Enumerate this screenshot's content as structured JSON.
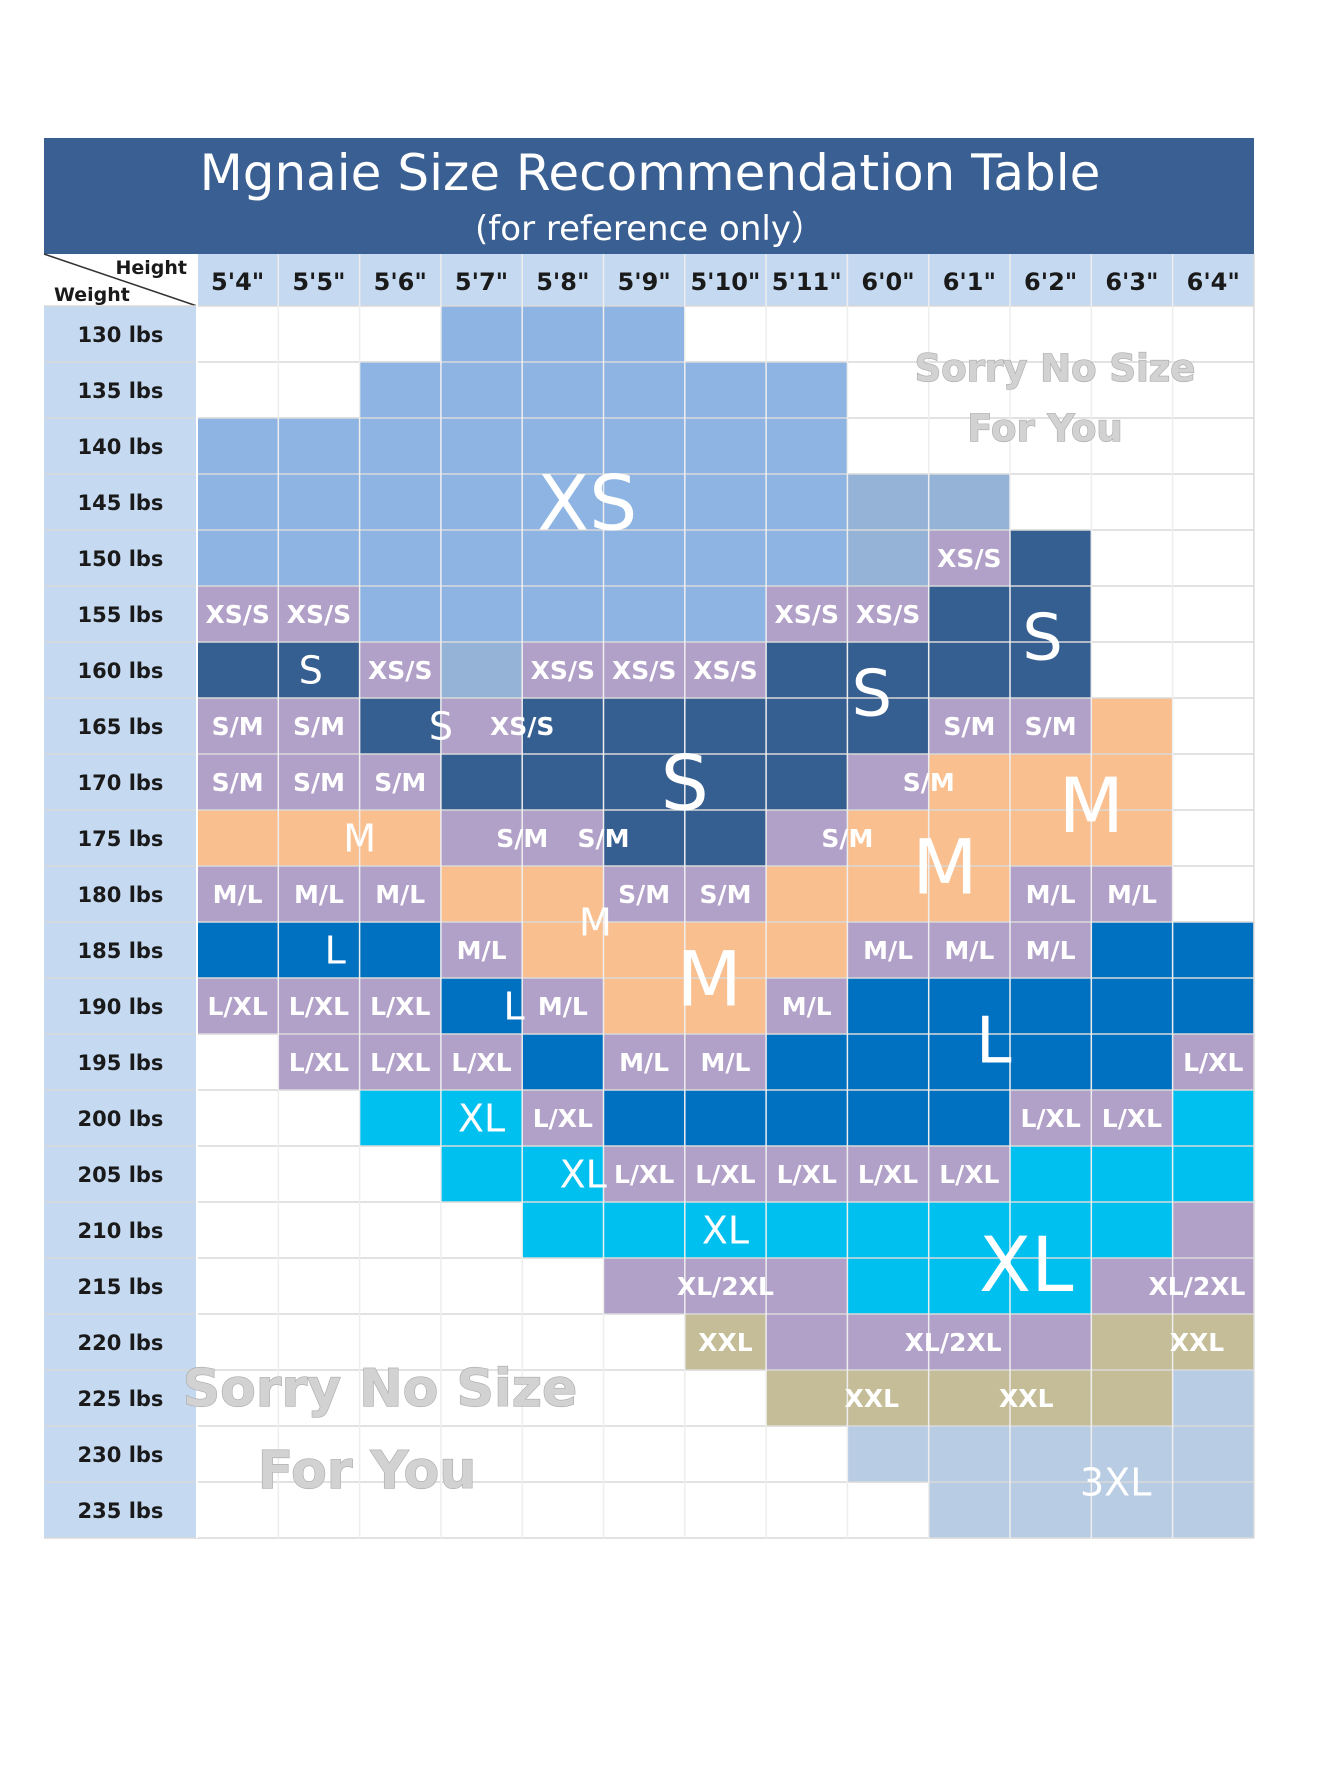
{
  "page": {
    "title": "Mgnaie Size Recommendation Table",
    "subtitle": "(for reference only）",
    "corner_height_label": "Height",
    "corner_weight_label": "Weight",
    "sorry_message_line1": "Sorry No Size",
    "sorry_message_line2": "For You"
  },
  "chart_data": {
    "type": "table",
    "heights": [
      "5'4\"",
      "5'5\"",
      "5'6\"",
      "5'7\"",
      "5'8\"",
      "5'9\"",
      "5'10\"",
      "5'11\"",
      "6'0\"",
      "6'1\"",
      "6'2\"",
      "6'3\"",
      "6'4\""
    ],
    "weights": [
      "130 lbs",
      "135 lbs",
      "140 lbs",
      "145 lbs",
      "150 lbs",
      "155 lbs",
      "160 lbs",
      "165 lbs",
      "170 lbs",
      "175 lbs",
      "180 lbs",
      "185 lbs",
      "190 lbs",
      "195 lbs",
      "200 lbs",
      "205 lbs",
      "210 lbs",
      "215 lbs",
      "220 lbs",
      "225 lbs",
      "230 lbs",
      "235 lbs"
    ],
    "colors": {
      "XS": "#8db4e2",
      "XS/S": "#b1a0c7",
      "S": "#365f91",
      "S/M": "#b1a0c7",
      "M": "#fabf8f",
      "M/L": "#b1a0c7",
      "L": "#0070c0",
      "L/XL": "#b1a0c7",
      "XL": "#00c0f0",
      "XL/2XL": "#b1a0c7",
      "XXL": "#c4bd97",
      "3XL": "#b8cce4",
      "XS-light": "#95b3d7",
      "none": "#ffffff",
      "header_bar": "#3a5f92",
      "header_row": "#c5d9f1",
      "weight_col": "#c5d9f1",
      "grid": "#d9d9d9"
    },
    "cells": [
      [
        "none",
        "none",
        "none",
        "XS",
        "XS",
        "XS",
        "none",
        "none",
        "none",
        "none",
        "none",
        "none",
        "none"
      ],
      [
        "none",
        "none",
        "XS",
        "XS",
        "XS",
        "XS",
        "XS",
        "XS",
        "none",
        "none",
        "none",
        "none",
        "none"
      ],
      [
        "XS",
        "XS",
        "XS",
        "XS",
        "XS",
        "XS",
        "XS",
        "XS",
        "none",
        "none",
        "none",
        "none",
        "none"
      ],
      [
        "XS",
        "XS",
        "XS",
        "XS",
        "XS",
        "XS",
        "XS",
        "XS",
        "XS-light",
        "XS-light",
        "none",
        "none",
        "none"
      ],
      [
        "XS",
        "XS",
        "XS",
        "XS",
        "XS",
        "XS",
        "XS",
        "XS",
        "XS-light",
        "XS/S",
        "S",
        "none",
        "none"
      ],
      [
        "XS/S",
        "XS/S",
        "XS",
        "XS",
        "XS",
        "XS",
        "XS",
        "XS/S",
        "XS/S",
        "S",
        "S",
        "none",
        "none"
      ],
      [
        "S",
        "S",
        "XS/S",
        "XS-light",
        "XS/S",
        "XS/S",
        "XS/S",
        "S",
        "S",
        "S",
        "S",
        "none",
        "none"
      ],
      [
        "S/M",
        "S/M",
        "S",
        "XS/S",
        "S",
        "S",
        "S",
        "S",
        "S",
        "S/M",
        "S/M",
        "M",
        "none"
      ],
      [
        "S/M",
        "S/M",
        "S/M",
        "S",
        "S",
        "S",
        "S",
        "S",
        "S/M",
        "M",
        "M",
        "M",
        "none"
      ],
      [
        "M",
        "M",
        "M",
        "S/M",
        "S/M",
        "S",
        "S",
        "S/M",
        "M",
        "M",
        "M",
        "M",
        "none"
      ],
      [
        "M/L",
        "M/L",
        "M/L",
        "M",
        "M",
        "S/M",
        "S/M",
        "M",
        "M",
        "M",
        "M/L",
        "M/L",
        "none"
      ],
      [
        "L",
        "L",
        "L",
        "M/L",
        "M",
        "M",
        "M",
        "M",
        "M/L",
        "M/L",
        "M/L",
        "L",
        "L"
      ],
      [
        "L/XL",
        "L/XL",
        "L/XL",
        "L",
        "M/L",
        "M",
        "M",
        "M/L",
        "L",
        "L",
        "L",
        "L",
        "L"
      ],
      [
        "none",
        "L/XL",
        "L/XL",
        "L/XL",
        "L",
        "M/L",
        "M/L",
        "L",
        "L",
        "L",
        "L",
        "L",
        "L/XL"
      ],
      [
        "none",
        "none",
        "XL",
        "XL",
        "L/XL",
        "L",
        "L",
        "L",
        "L",
        "L",
        "L/XL",
        "L/XL",
        "XL"
      ],
      [
        "none",
        "none",
        "none",
        "XL",
        "XL",
        "L/XL",
        "L/XL",
        "L/XL",
        "L/XL",
        "L/XL",
        "XL",
        "XL",
        "XL"
      ],
      [
        "none",
        "none",
        "none",
        "none",
        "XL",
        "XL",
        "XL",
        "XL",
        "XL",
        "XL",
        "XL",
        "XL",
        "XL/2XL"
      ],
      [
        "none",
        "none",
        "none",
        "none",
        "none",
        "XL/2XL",
        "XL/2XL",
        "XL/2XL",
        "XL",
        "XL",
        "XL",
        "XL/2XL",
        "XL/2XL"
      ],
      [
        "none",
        "none",
        "none",
        "none",
        "none",
        "none",
        "XXL",
        "XL/2XL",
        "XL/2XL",
        "XL/2XL",
        "XL/2XL",
        "XXL",
        "XXL"
      ],
      [
        "none",
        "none",
        "none",
        "none",
        "none",
        "none",
        "none",
        "XXL",
        "XXL",
        "XXL",
        "XXL",
        "XXL",
        "3XL"
      ],
      [
        "none",
        "none",
        "none",
        "none",
        "none",
        "none",
        "none",
        "none",
        "3XL",
        "3XL",
        "3XL",
        "3XL",
        "3XL"
      ],
      [
        "none",
        "none",
        "none",
        "none",
        "none",
        "none",
        "none",
        "none",
        "none",
        "3XL",
        "3XL",
        "3XL",
        "3XL"
      ]
    ],
    "labels": [
      {
        "text": "XS",
        "row": 3,
        "col": 4.3,
        "size": "xl"
      },
      {
        "text": "XS/S",
        "row": 4,
        "col": 9,
        "size": "s"
      },
      {
        "text": "XS/S",
        "row": 5,
        "col": 0,
        "size": "s"
      },
      {
        "text": "XS/S",
        "row": 5,
        "col": 1,
        "size": "s"
      },
      {
        "text": "XS/S",
        "row": 5,
        "col": 7,
        "size": "s"
      },
      {
        "text": "XS/S",
        "row": 5,
        "col": 8,
        "size": "s"
      },
      {
        "text": "S",
        "row": 5.4,
        "col": 9.9,
        "size": "l"
      },
      {
        "text": "S",
        "row": 6,
        "col": 0.9,
        "size": "m"
      },
      {
        "text": "XS/S",
        "row": 6,
        "col": 2,
        "size": "s"
      },
      {
        "text": "XS/S",
        "row": 6,
        "col": 4,
        "size": "s"
      },
      {
        "text": "XS/S",
        "row": 6,
        "col": 5,
        "size": "s"
      },
      {
        "text": "XS/S",
        "row": 6,
        "col": 6,
        "size": "s"
      },
      {
        "text": "S",
        "row": 6.4,
        "col": 7.8,
        "size": "l"
      },
      {
        "text": "S/M",
        "row": 7,
        "col": 0,
        "size": "s"
      },
      {
        "text": "S/M",
        "row": 7,
        "col": 1,
        "size": "s"
      },
      {
        "text": "S",
        "row": 7,
        "col": 2.5,
        "size": "m"
      },
      {
        "text": "XS/S",
        "row": 7,
        "col": 3.5,
        "size": "s"
      },
      {
        "text": "S/M",
        "row": 7,
        "col": 9,
        "size": "s"
      },
      {
        "text": "S/M",
        "row": 7,
        "col": 10,
        "size": "s"
      },
      {
        "text": "S/M",
        "row": 8,
        "col": 0,
        "size": "s"
      },
      {
        "text": "S/M",
        "row": 8,
        "col": 1,
        "size": "s"
      },
      {
        "text": "S/M",
        "row": 8,
        "col": 2,
        "size": "s"
      },
      {
        "text": "S",
        "row": 8,
        "col": 5.5,
        "size": "xl"
      },
      {
        "text": "S/M",
        "row": 8,
        "col": 8.5,
        "size": "s"
      },
      {
        "text": "M",
        "row": 8.4,
        "col": 10.5,
        "size": "xl"
      },
      {
        "text": "M",
        "row": 9,
        "col": 1.5,
        "size": "m"
      },
      {
        "text": "S/M",
        "row": 9,
        "col": 3.5,
        "size": "s"
      },
      {
        "text": "S/M",
        "row": 9,
        "col": 4.5,
        "size": "s"
      },
      {
        "text": "S/M",
        "row": 9,
        "col": 7.5,
        "size": "s"
      },
      {
        "text": "M",
        "row": 9.5,
        "col": 8.7,
        "size": "xl"
      },
      {
        "text": "M/L",
        "row": 10,
        "col": 0,
        "size": "s"
      },
      {
        "text": "M/L",
        "row": 10,
        "col": 1,
        "size": "s"
      },
      {
        "text": "M/L",
        "row": 10,
        "col": 2,
        "size": "s"
      },
      {
        "text": "S/M",
        "row": 10,
        "col": 5,
        "size": "s"
      },
      {
        "text": "S/M",
        "row": 10,
        "col": 6,
        "size": "s"
      },
      {
        "text": "M/L",
        "row": 10,
        "col": 10,
        "size": "s"
      },
      {
        "text": "M/L",
        "row": 10,
        "col": 11,
        "size": "s"
      },
      {
        "text": "M",
        "row": 10.5,
        "col": 4.4,
        "size": "m"
      },
      {
        "text": "L",
        "row": 11,
        "col": 1.2,
        "size": "m"
      },
      {
        "text": "M/L",
        "row": 11,
        "col": 3,
        "size": "s"
      },
      {
        "text": "M/L",
        "row": 11,
        "col": 8,
        "size": "s"
      },
      {
        "text": "M/L",
        "row": 11,
        "col": 9,
        "size": "s"
      },
      {
        "text": "M/L",
        "row": 11,
        "col": 10,
        "size": "s"
      },
      {
        "text": "M",
        "row": 11.5,
        "col": 5.8,
        "size": "xl"
      },
      {
        "text": "L/XL",
        "row": 12,
        "col": 0,
        "size": "s"
      },
      {
        "text": "L/XL",
        "row": 12,
        "col": 1,
        "size": "s"
      },
      {
        "text": "L/XL",
        "row": 12,
        "col": 2,
        "size": "s"
      },
      {
        "text": "L",
        "row": 12,
        "col": 3.4,
        "size": "m"
      },
      {
        "text": "M/L",
        "row": 12,
        "col": 4,
        "size": "s"
      },
      {
        "text": "M/L",
        "row": 12,
        "col": 7,
        "size": "s"
      },
      {
        "text": "L",
        "row": 12.6,
        "col": 9.3,
        "size": "l"
      },
      {
        "text": "L/XL",
        "row": 13,
        "col": 1,
        "size": "s"
      },
      {
        "text": "L/XL",
        "row": 13,
        "col": 2,
        "size": "s"
      },
      {
        "text": "L/XL",
        "row": 13,
        "col": 3,
        "size": "s"
      },
      {
        "text": "M/L",
        "row": 13,
        "col": 5,
        "size": "s"
      },
      {
        "text": "M/L",
        "row": 13,
        "col": 6,
        "size": "s"
      },
      {
        "text": "L/XL",
        "row": 13,
        "col": 12,
        "size": "s"
      },
      {
        "text": "XL",
        "row": 14,
        "col": 3.0,
        "size": "m"
      },
      {
        "text": "L/XL",
        "row": 14,
        "col": 4,
        "size": "s"
      },
      {
        "text": "L/XL",
        "row": 14,
        "col": 10,
        "size": "s"
      },
      {
        "text": "L/XL",
        "row": 14,
        "col": 11,
        "size": "s"
      },
      {
        "text": "XL",
        "row": 15,
        "col": 4.25,
        "size": "m"
      },
      {
        "text": "L/XL",
        "row": 15,
        "col": 5,
        "size": "s"
      },
      {
        "text": "L/XL",
        "row": 15,
        "col": 6,
        "size": "s"
      },
      {
        "text": "L/XL",
        "row": 15,
        "col": 7,
        "size": "s"
      },
      {
        "text": "L/XL",
        "row": 15,
        "col": 8,
        "size": "s"
      },
      {
        "text": "L/XL",
        "row": 15,
        "col": 9,
        "size": "s"
      },
      {
        "text": "XL",
        "row": 16,
        "col": 6,
        "size": "m"
      },
      {
        "text": "XL",
        "row": 16.6,
        "col": 9.7,
        "size": "xl"
      },
      {
        "text": "XL/2XL",
        "row": 17,
        "col": 6,
        "size": "s"
      },
      {
        "text": "XL/2XL",
        "row": 17,
        "col": 11.8,
        "size": "s"
      },
      {
        "text": "XXL",
        "row": 18,
        "col": 6,
        "size": "s"
      },
      {
        "text": "XL/2XL",
        "row": 18,
        "col": 8.8,
        "size": "s"
      },
      {
        "text": "XXL",
        "row": 18,
        "col": 11.8,
        "size": "s"
      },
      {
        "text": "XXL",
        "row": 19,
        "col": 7.8,
        "size": "s"
      },
      {
        "text": "XXL",
        "row": 19,
        "col": 9.7,
        "size": "s"
      },
      {
        "text": "3XL",
        "row": 20.5,
        "col": 10.8,
        "size": "m"
      }
    ]
  }
}
